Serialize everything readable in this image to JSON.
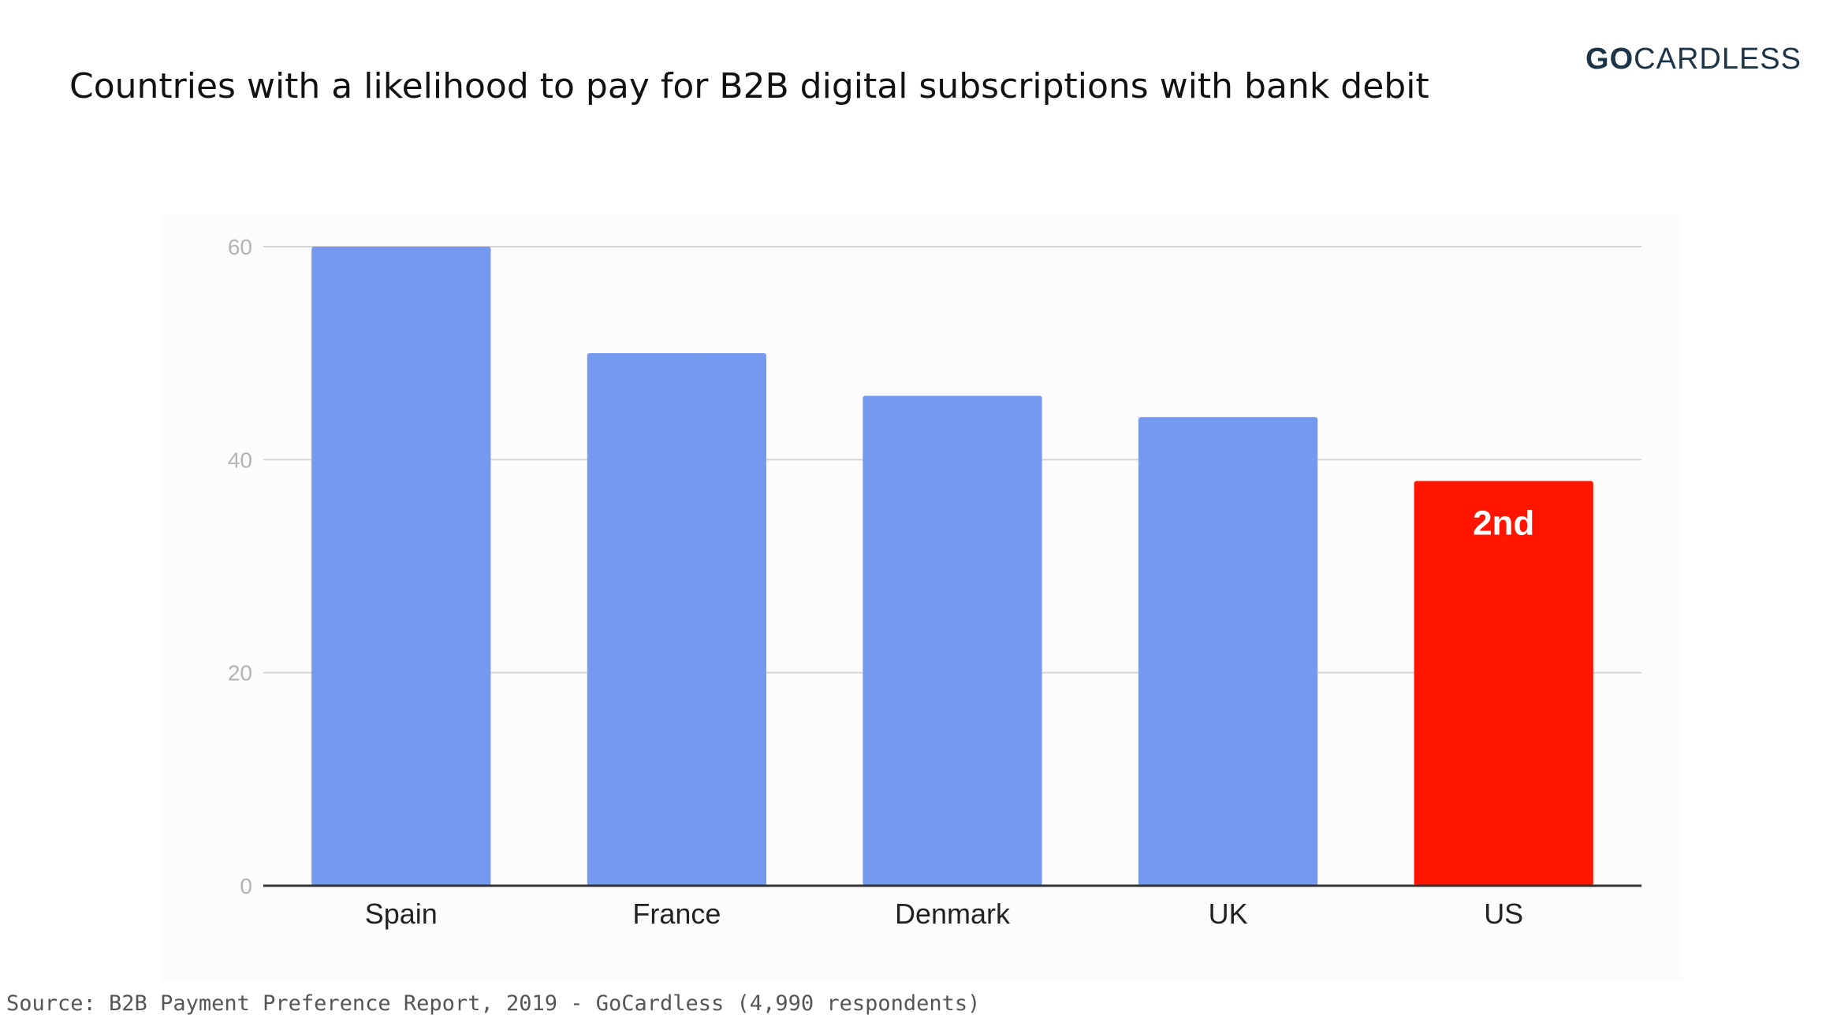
{
  "title": "Countries with a likelihood to pay for B2B digital subscriptions with bank debit",
  "logo": {
    "prefix": "GO",
    "suffix": "CARDLESS"
  },
  "source": "Source: B2B Payment Preference Report, 2019 - GoCardless (4,990 respondents)",
  "colors": {
    "bar": "#7599ee",
    "highlight": "#ff1500",
    "grid": "#d6d6d6",
    "axis": "#333333",
    "tick": "#b3b3b3"
  },
  "chart_data": {
    "type": "bar",
    "categories": [
      "Spain",
      "France",
      "Denmark",
      "UK",
      "US"
    ],
    "values": [
      60,
      50,
      46,
      44,
      38
    ],
    "highlight_index": 4,
    "annotations": [
      {
        "category": "US",
        "text": "2nd"
      }
    ],
    "yticks": [
      "0",
      "20",
      "40",
      "60"
    ],
    "ylim": [
      0,
      60
    ],
    "grid": true,
    "title": "",
    "xlabel": "",
    "ylabel": ""
  }
}
